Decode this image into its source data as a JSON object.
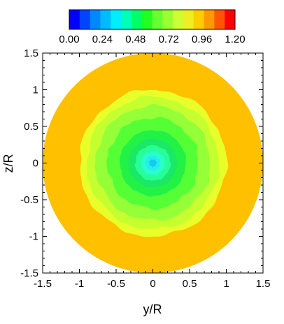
{
  "chart_data": {
    "type": "heatmap",
    "title": "",
    "xlabel": "y/R",
    "ylabel": "z/R",
    "xlim": [
      -1.5,
      1.5
    ],
    "ylim": [
      -1.5,
      1.5
    ],
    "xticks": [
      "-1.5",
      "-1",
      "-0.5",
      "0",
      "0.5",
      "1",
      "1.5"
    ],
    "yticks": [
      "-1.5",
      "-1",
      "-0.5",
      "0",
      "0.5",
      "1",
      "1.5"
    ],
    "grid": false,
    "colorbar": {
      "placement": "top",
      "tick_labels": [
        "0.00",
        "0.24",
        "0.48",
        "0.72",
        "0.96",
        "1.20"
      ],
      "min": 0.0,
      "max": 1.2,
      "levels": 16,
      "colors": [
        "#0000ff",
        "#0044ff",
        "#0088ff",
        "#00bbff",
        "#00eeff",
        "#00ffbb",
        "#00ff66",
        "#22ff22",
        "#66ff33",
        "#99ff33",
        "#ccff33",
        "#eeee22",
        "#ffcc00",
        "#ff9900",
        "#ff5500",
        "#ff0000"
      ]
    },
    "contours": [
      {
        "radius": 1.5,
        "value": 0.92,
        "color": "#ffc000"
      },
      {
        "radius": 1.0,
        "value": 0.84,
        "color": "#e8ff2a"
      },
      {
        "radius": 0.9,
        "value": 0.78,
        "color": "#c5ff30"
      },
      {
        "radius": 0.78,
        "value": 0.72,
        "color": "#95ff38"
      },
      {
        "radius": 0.62,
        "value": 0.64,
        "color": "#55ff35"
      },
      {
        "radius": 0.45,
        "value": 0.58,
        "color": "#22f245"
      },
      {
        "radius": 0.33,
        "value": 0.52,
        "color": "#1ae866"
      },
      {
        "radius": 0.24,
        "value": 0.46,
        "color": "#26ff99"
      },
      {
        "radius": 0.16,
        "value": 0.4,
        "color": "#2affcc"
      },
      {
        "radius": 0.1,
        "value": 0.34,
        "color": "#22eeee"
      },
      {
        "radius": 0.05,
        "value": 0.28,
        "color": "#18c8ee"
      }
    ]
  }
}
